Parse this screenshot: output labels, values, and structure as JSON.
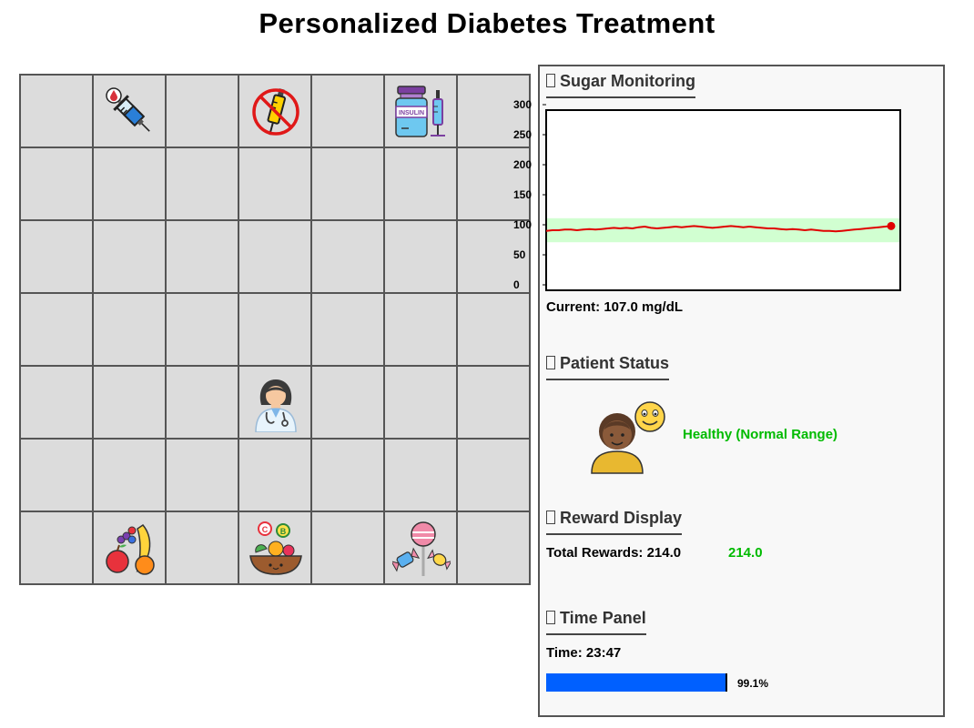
{
  "title": "Personalized Diabetes Treatment",
  "grid": {
    "rows": 7,
    "cols": 7,
    "items": [
      {
        "row": 0,
        "col": 1,
        "icon": "insulin-syringe-icon"
      },
      {
        "row": 0,
        "col": 3,
        "icon": "no-injection-icon"
      },
      {
        "row": 0,
        "col": 5,
        "icon": "insulin-vial-icon"
      },
      {
        "row": 4,
        "col": 3,
        "icon": "doctor-agent-icon"
      },
      {
        "row": 6,
        "col": 1,
        "icon": "fruits-icon"
      },
      {
        "row": 6,
        "col": 3,
        "icon": "vitamin-food-bowl-icon"
      },
      {
        "row": 6,
        "col": 5,
        "icon": "candy-sweets-icon"
      }
    ]
  },
  "sugar_monitoring": {
    "title": "Sugar Monitoring",
    "current_label": "Current: 107.0 mg/dL",
    "chart_data": {
      "type": "line",
      "y_ticks": [
        "300",
        "250",
        "200",
        "150",
        "100",
        "50",
        "0"
      ],
      "ylim": [
        0,
        300
      ],
      "normal_range": [
        80,
        120
      ],
      "values": [
        99,
        100,
        100,
        101,
        101,
        100,
        101,
        102,
        101,
        102,
        103,
        104,
        103,
        104,
        103,
        105,
        106,
        104,
        103,
        104,
        105,
        106,
        105,
        106,
        107,
        106,
        105,
        104,
        105,
        106,
        107,
        106,
        105,
        106,
        105,
        104,
        103,
        103,
        102,
        101,
        102,
        101,
        100,
        101,
        100,
        99,
        99,
        98,
        99,
        100,
        101,
        102,
        103,
        104,
        105,
        106,
        107
      ],
      "line_color": "#e00000",
      "band_color": "#ccffcc",
      "last_marker": true
    }
  },
  "patient_status": {
    "title": "Patient Status",
    "status_text": "Healthy (Normal Range)",
    "status_color": "#00bb00",
    "avatar_icon": "happy-patient-icon"
  },
  "reward_display": {
    "title": "Reward Display",
    "total_label": "Total Rewards: 214.0",
    "value": "214.0",
    "value_color": "#00bb00"
  },
  "time_panel": {
    "title": "Time Panel",
    "time_label": "Time: 23:47",
    "progress_percent": 99.1,
    "progress_label": "99.1%",
    "bar_color": "#0060ff"
  }
}
